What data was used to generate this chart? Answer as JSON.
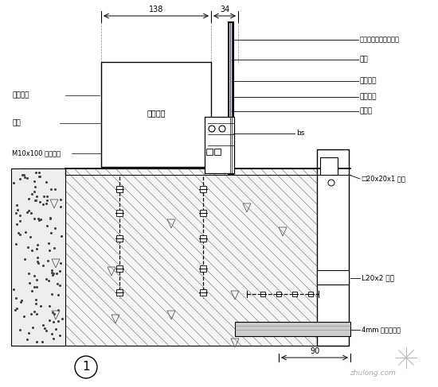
{
  "bg_color": "#ffffff",
  "lc": "#000000",
  "labels": {
    "top_glass": "橱浅雾色钢化镀膜玻璃",
    "cailiao": "铝料",
    "shuangmian": "双面胶条",
    "lvjin": "铝金扣件",
    "mijiao": "密接胶",
    "bs": "bs",
    "zhuzhu": "立柱窗管",
    "hengliao": "横料",
    "pengzhang": "M10x100 膨胀螺栓",
    "miantie": "厚单面贴",
    "fangxing": "20x20x1 铝通",
    "jiaolv": "L20x2 角铝",
    "fuhe_ban": "4mm 厚复合铝板",
    "dim_138": "138",
    "dim_34": "34",
    "dim_90": "90",
    "circle_1": "1"
  }
}
